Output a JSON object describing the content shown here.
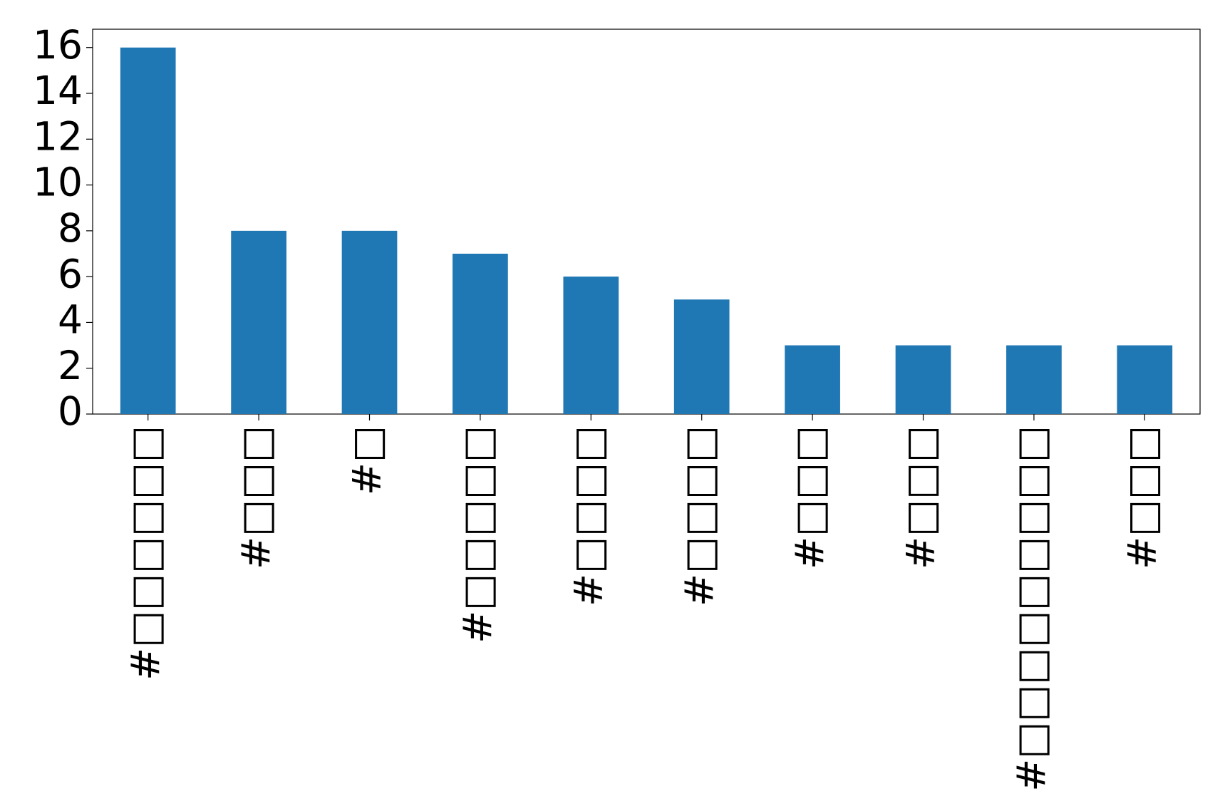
{
  "chart_data": {
    "type": "bar",
    "categories": [
      "#□□□□□□",
      "#□□□",
      "#□",
      "#□□□□□",
      "#□□□□",
      "#□□□□",
      "#□□□",
      "#□□□",
      "#□□□□□□□□□",
      "#□□□"
    ],
    "values": [
      16,
      8,
      8,
      7,
      6,
      5,
      3,
      3,
      3,
      3
    ],
    "color": "#1f77b4",
    "ylim": [
      0,
      16.8
    ],
    "yticks": [
      0,
      2,
      4,
      6,
      8,
      10,
      12,
      14,
      16
    ],
    "grid": false
  }
}
